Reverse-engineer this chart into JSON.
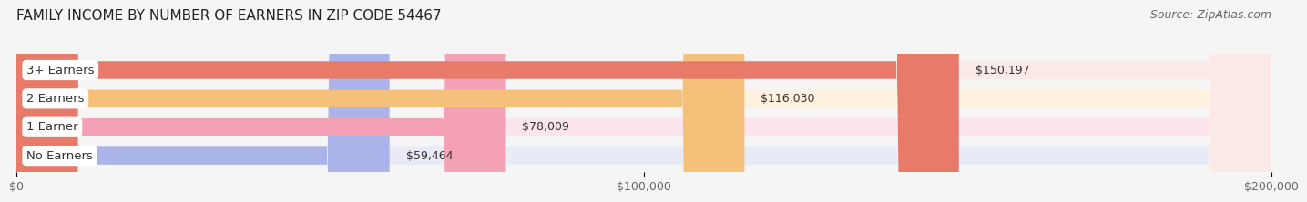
{
  "title": "FAMILY INCOME BY NUMBER OF EARNERS IN ZIP CODE 54467",
  "source": "Source: ZipAtlas.com",
  "categories": [
    "No Earners",
    "1 Earner",
    "2 Earners",
    "3+ Earners"
  ],
  "values": [
    59464,
    78009,
    116030,
    150197
  ],
  "value_labels": [
    "$59,464",
    "$78,009",
    "$116,030",
    "$150,197"
  ],
  "bar_colors": [
    "#aab4e8",
    "#f4a0b5",
    "#f5c07a",
    "#e87a6a"
  ],
  "bar_bg_colors": [
    "#e8eaf6",
    "#fce4ec",
    "#fff3e0",
    "#fbe9e7"
  ],
  "xlim": [
    0,
    200000
  ],
  "xticks": [
    0,
    100000,
    200000
  ],
  "xtick_labels": [
    "$0",
    "$100,000",
    "$200,000"
  ],
  "title_fontsize": 11,
  "source_fontsize": 9,
  "label_fontsize": 9.5,
  "value_fontsize": 9,
  "tick_fontsize": 9,
  "bg_color": "#f5f5f5",
  "bar_height": 0.62,
  "label_text_color": "#333333"
}
